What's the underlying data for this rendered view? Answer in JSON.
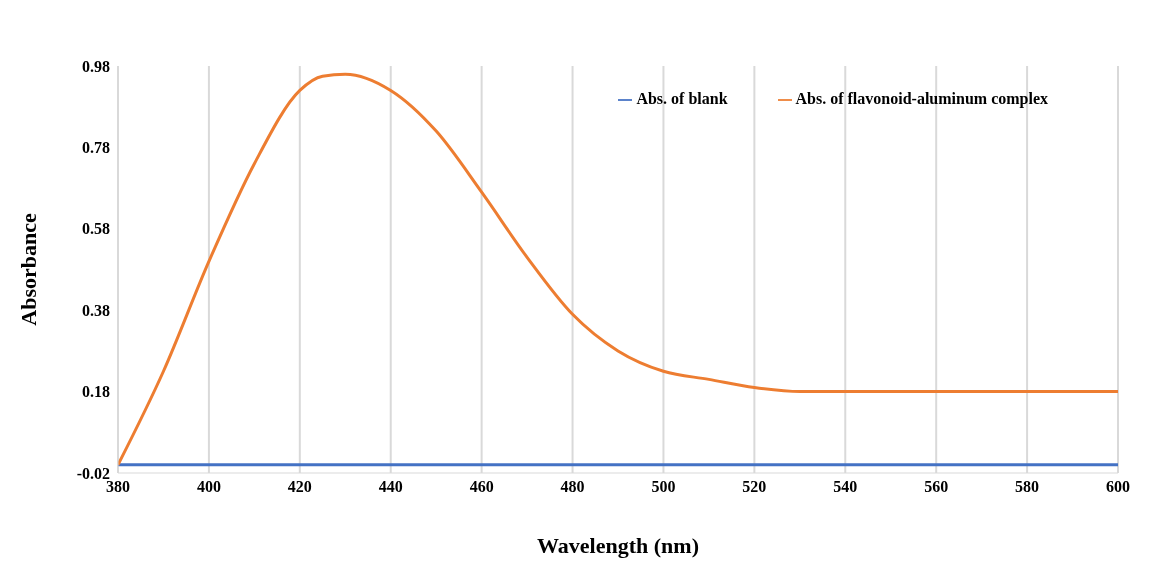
{
  "chart_data": {
    "type": "line",
    "xlabel": "Wavelength (nm)",
    "ylabel": "Absorbance",
    "x": [
      380,
      390,
      400,
      410,
      420,
      425,
      430,
      440,
      450,
      460,
      470,
      480,
      490,
      500,
      510,
      520,
      530,
      540,
      560,
      580,
      600
    ],
    "series": [
      {
        "name": "Abs. of blank",
        "color": "#4472c4",
        "values": [
          0.0,
          0.0,
          0.0,
          0.0,
          0.0,
          0.0,
          0.0,
          0.0,
          0.0,
          0.0,
          0.0,
          0.0,
          0.0,
          0.0,
          0.0,
          0.0,
          0.0,
          0.0,
          0.0,
          0.0,
          0.0
        ]
      },
      {
        "name": "Abs. of flavonoid-aluminum complex",
        "color": "#ed7d31",
        "values": [
          0.0,
          0.23,
          0.5,
          0.74,
          0.92,
          0.955,
          0.96,
          0.92,
          0.82,
          0.67,
          0.51,
          0.37,
          0.28,
          0.23,
          0.21,
          0.19,
          0.18,
          0.18,
          0.18,
          0.18,
          0.18
        ]
      }
    ],
    "xlim": [
      380,
      600
    ],
    "xticks": [
      380,
      400,
      420,
      440,
      460,
      480,
      500,
      520,
      540,
      560,
      580,
      600
    ],
    "ylim": [
      -0.02,
      0.98
    ],
    "yticks": [
      -0.02,
      0.18,
      0.38,
      0.58,
      0.78,
      0.98
    ],
    "grid": "x",
    "legend": "top right",
    "marker": "none",
    "line_style": "solid"
  }
}
